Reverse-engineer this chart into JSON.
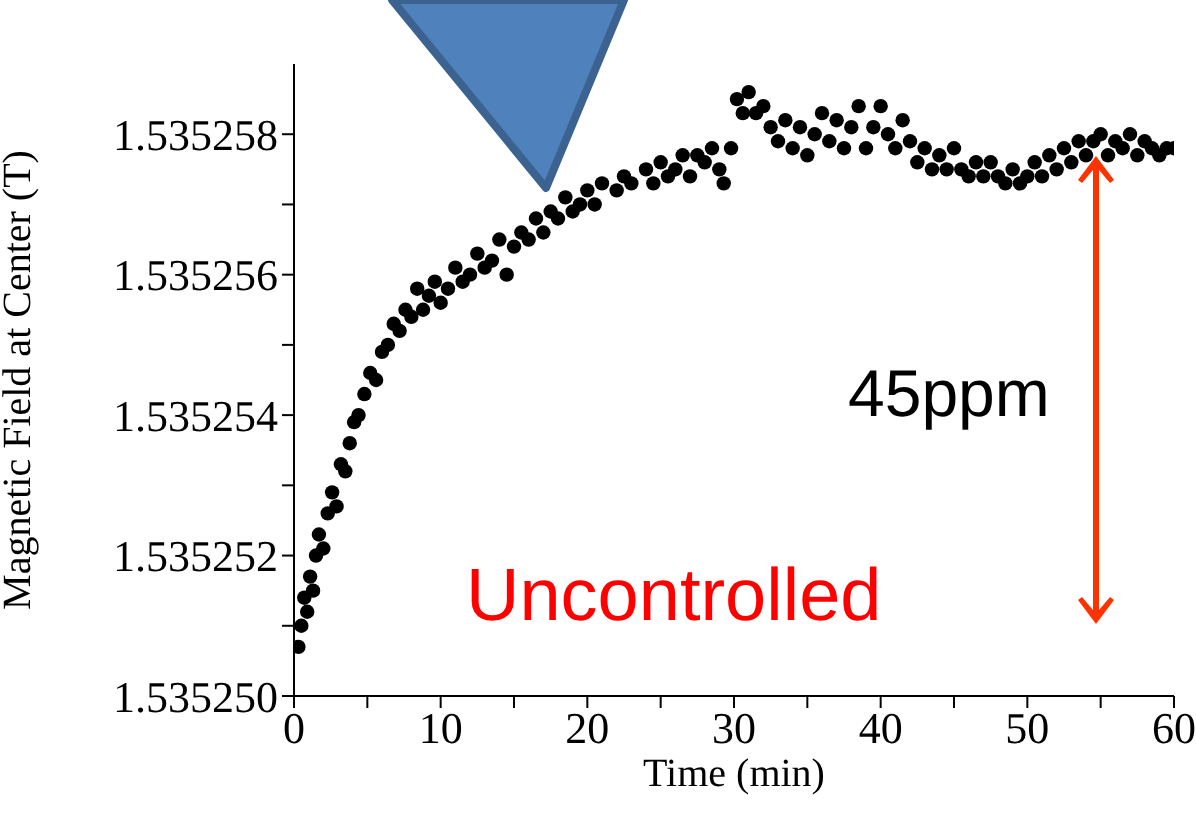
{
  "chart_data": {
    "type": "scatter",
    "xlabel": "Time (min)",
    "ylabel": "Magnetic Field at Center (T)",
    "xlim": [
      0,
      60
    ],
    "ylim": [
      1.53525,
      1.535259
    ],
    "xticks": [
      0,
      {
        "value": 5,
        "label": null
      },
      10,
      {
        "value": 15,
        "label": null
      },
      20,
      {
        "value": 25,
        "label": null
      },
      30,
      {
        "value": 35,
        "label": null
      },
      40,
      {
        "value": 45,
        "label": null
      },
      50,
      {
        "value": 55,
        "label": null
      },
      60
    ],
    "yticks": [
      {
        "value": 1.53525,
        "label": "1.535250"
      },
      {
        "value": 1.535251,
        "label": null
      },
      1.535252,
      {
        "value": 1.535253,
        "label": null
      },
      1.535254,
      {
        "value": 1.535255,
        "label": null
      },
      1.535256,
      {
        "value": 1.535257,
        "label": null
      },
      1.535258
    ],
    "grid": false,
    "legend": false,
    "marker": "circle",
    "annotations": [
      "45ppm",
      "Uncontrolled"
    ],
    "series": [
      {
        "color": "#000000",
        "x": [
          0.3,
          0.5,
          0.7,
          0.9,
          1.1,
          1.3,
          1.5,
          1.7,
          2.0,
          2.3,
          2.6,
          2.9,
          3.2,
          3.5,
          3.8,
          4.1,
          4.4,
          4.8,
          5.2,
          5.6,
          6.0,
          6.4,
          6.8,
          7.2,
          7.6,
          8.0,
          8.4,
          8.8,
          9.2,
          9.6,
          10,
          10.5,
          11,
          11.5,
          12,
          12.5,
          13,
          13.5,
          14,
          14.5,
          15,
          15.5,
          16,
          16.5,
          17,
          17.5,
          18,
          18.5,
          19,
          19.5,
          20,
          20.5,
          21,
          22,
          22.5,
          23,
          24,
          24.5,
          25,
          25.5,
          26,
          26.5,
          27,
          27.5,
          28,
          28.5,
          29,
          29.3,
          29.8,
          30.2,
          30.6,
          31,
          31.5,
          32,
          32.5,
          33,
          33.5,
          34,
          34.5,
          35,
          35.5,
          36,
          36.5,
          37,
          37.5,
          38,
          38.5,
          39,
          39.5,
          40,
          40.5,
          41,
          41.5,
          42,
          42.5,
          43,
          43.5,
          44,
          44.5,
          45,
          45.5,
          46,
          46.5,
          47,
          47.5,
          48,
          48.5,
          49,
          49.5,
          50,
          50.5,
          51,
          51.5,
          52,
          52.5,
          53,
          53.5,
          54,
          54.5,
          55,
          55.5,
          56,
          56.5,
          57,
          57.5,
          58,
          58.5,
          59,
          59.5,
          60
        ],
        "values": [
          1.5352507,
          1.535251,
          1.5352514,
          1.5352512,
          1.5352517,
          1.5352515,
          1.535252,
          1.5352523,
          1.5352521,
          1.5352526,
          1.5352529,
          1.5352527,
          1.5352533,
          1.5352532,
          1.5352536,
          1.5352539,
          1.535254,
          1.5352543,
          1.5352546,
          1.5352545,
          1.5352549,
          1.535255,
          1.5352553,
          1.5352552,
          1.5352555,
          1.5352554,
          1.5352558,
          1.5352555,
          1.5352557,
          1.5352559,
          1.5352556,
          1.5352558,
          1.5352561,
          1.5352559,
          1.535256,
          1.5352563,
          1.5352561,
          1.5352562,
          1.5352565,
          1.535256,
          1.5352564,
          1.5352566,
          1.5352565,
          1.5352568,
          1.5352566,
          1.5352569,
          1.5352568,
          1.5352571,
          1.5352569,
          1.535257,
          1.5352572,
          1.535257,
          1.5352573,
          1.5352572,
          1.5352574,
          1.5352573,
          1.5352575,
          1.5352573,
          1.5352576,
          1.5352574,
          1.5352575,
          1.5352577,
          1.5352574,
          1.5352577,
          1.5352576,
          1.5352578,
          1.5352575,
          1.5352573,
          1.5352578,
          1.5352585,
          1.5352583,
          1.5352586,
          1.5352583,
          1.5352584,
          1.5352581,
          1.5352579,
          1.5352582,
          1.5352578,
          1.5352581,
          1.5352577,
          1.535258,
          1.5352583,
          1.5352579,
          1.5352582,
          1.5352578,
          1.5352581,
          1.5352584,
          1.5352578,
          1.5352581,
          1.5352584,
          1.535258,
          1.5352578,
          1.5352582,
          1.5352579,
          1.5352576,
          1.5352578,
          1.5352575,
          1.5352577,
          1.5352575,
          1.5352578,
          1.5352575,
          1.5352574,
          1.5352576,
          1.5352574,
          1.5352576,
          1.5352574,
          1.5352573,
          1.5352575,
          1.5352573,
          1.5352574,
          1.5352576,
          1.5352574,
          1.5352577,
          1.5352575,
          1.5352578,
          1.5352576,
          1.5352579,
          1.5352577,
          1.5352579,
          1.535258,
          1.5352577,
          1.5352579,
          1.5352578,
          1.535258,
          1.5352577,
          1.5352579,
          1.5352578,
          1.5352577,
          1.5352578,
          1.5352578
        ]
      }
    ]
  }
}
